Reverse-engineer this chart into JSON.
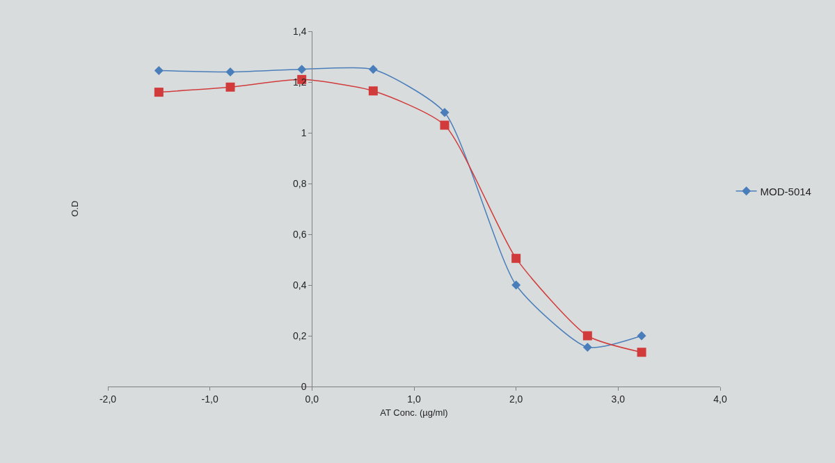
{
  "chart_data": {
    "type": "line",
    "xlabel": "AT Conc. (µg/ml)",
    "ylabel": "O.D",
    "x": [
      -1.5,
      -0.8,
      -0.1,
      0.6,
      1.3,
      2.0,
      2.7,
      3.23
    ],
    "series": [
      {
        "name": "MOD-5014",
        "color": "#4a7ebb",
        "marker": "diamond",
        "values": [
          1.245,
          1.24,
          1.25,
          1.25,
          1.08,
          0.4,
          0.155,
          0.2
        ]
      },
      {
        "color": "#d23b3b",
        "marker": "square",
        "values": [
          1.16,
          1.18,
          1.21,
          1.165,
          1.03,
          0.505,
          0.2,
          0.135
        ]
      }
    ],
    "xlim": [
      -2,
      4
    ],
    "ylim": [
      0,
      1.4
    ],
    "xticks": [
      {
        "value": -2,
        "label": "-2,0"
      },
      {
        "value": -1,
        "label": "-1,0"
      },
      {
        "value": 0,
        "label": "0,0"
      },
      {
        "value": 1,
        "label": "1,0"
      },
      {
        "value": 2,
        "label": "2,0"
      },
      {
        "value": 3,
        "label": "3,0"
      },
      {
        "value": 4,
        "label": "4,0"
      }
    ],
    "yticks": [
      0,
      {
        "value": 0.2,
        "label": "0,2"
      },
      {
        "value": 0.4,
        "label": "0,4"
      },
      {
        "value": 0.6,
        "label": "0,6"
      },
      {
        "value": 0.8,
        "label": "0,8"
      },
      1,
      {
        "value": 1.2,
        "label": "1,2"
      },
      {
        "value": 1.4,
        "label": "1,4"
      }
    ],
    "grid": false,
    "legend": "right",
    "line_style": "solid"
  }
}
